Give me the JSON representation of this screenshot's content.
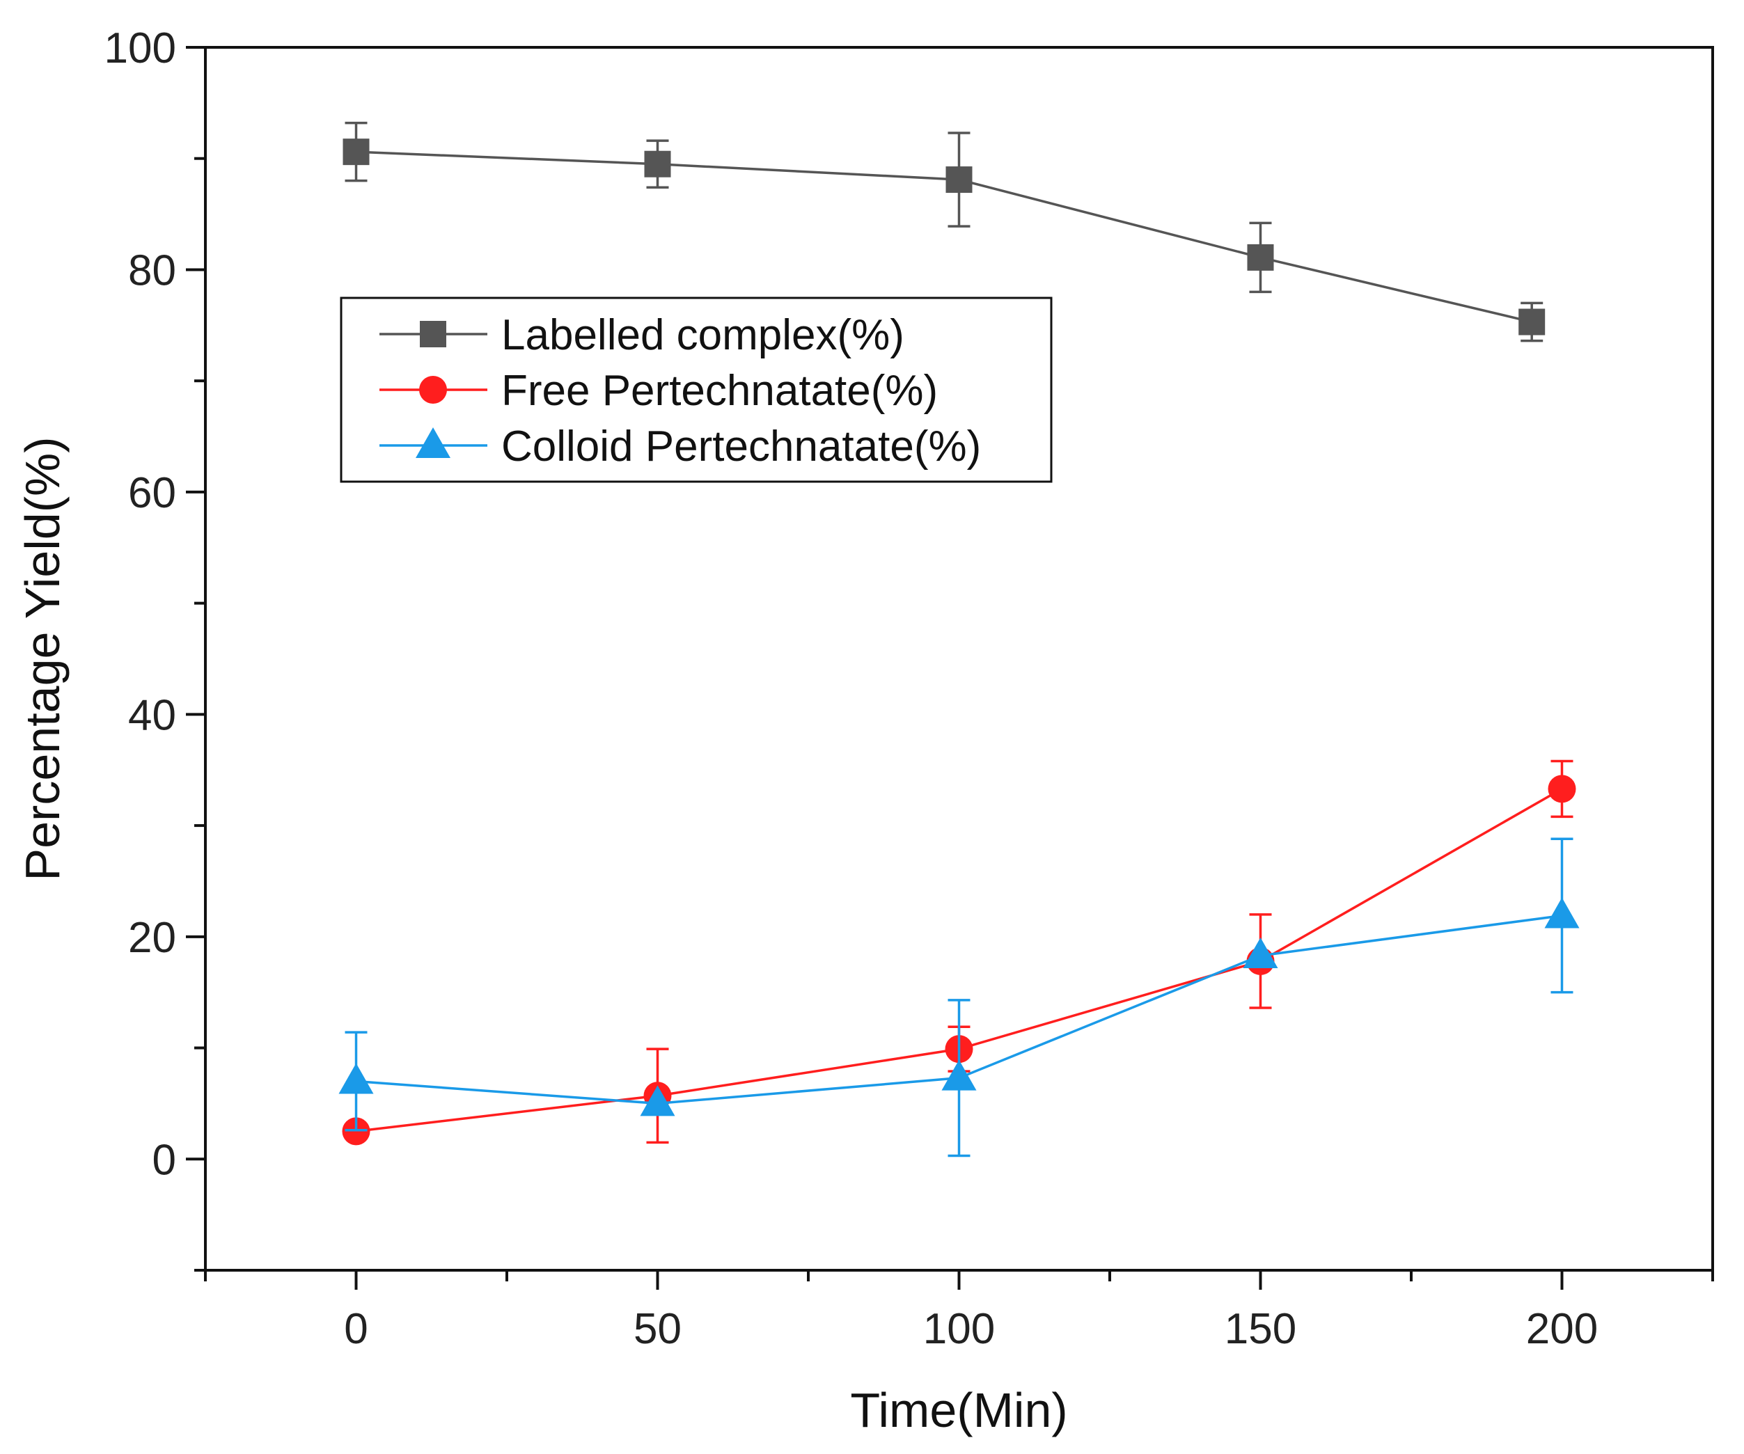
{
  "chart_data": {
    "type": "line",
    "title": "",
    "xlabel": "Time(Min)",
    "ylabel": "Percentage Yield(%)",
    "xlim": [
      -25,
      225
    ],
    "ylim": [
      -10,
      100
    ],
    "x_ticks": [
      0,
      50,
      100,
      150,
      200
    ],
    "x_tick_labels": [
      "0",
      "50",
      "100",
      "150",
      "200"
    ],
    "y_ticks": [
      0,
      20,
      40,
      60,
      80,
      100
    ],
    "y_tick_labels": [
      "0",
      "20",
      "40",
      "60",
      "80",
      "100"
    ],
    "grid": false,
    "legend_position": "upper-left",
    "series": [
      {
        "name": "Labelled complex(%)",
        "color": "#555555",
        "marker": "square",
        "x": [
          0,
          50,
          100,
          150,
          195
        ],
        "values": [
          90.6,
          89.5,
          88.1,
          81.1,
          75.3
        ],
        "error": [
          2.6,
          2.1,
          4.2,
          3.1,
          1.7
        ]
      },
      {
        "name": "Free Pertechnatate(%)",
        "color": "#ff1e1e",
        "marker": "circle",
        "x": [
          0,
          50,
          100,
          150,
          200
        ],
        "values": [
          2.5,
          5.7,
          9.9,
          17.8,
          33.3
        ],
        "error": [
          0,
          4.2,
          2.0,
          4.2,
          2.5
        ]
      },
      {
        "name": "Colloid Pertechnatate(%)",
        "color": "#1a9ae8",
        "marker": "triangle",
        "x": [
          0,
          50,
          100,
          150,
          200
        ],
        "values": [
          7.0,
          5.0,
          7.3,
          18.3,
          21.9
        ],
        "error": [
          4.4,
          0,
          7.0,
          0,
          6.9
        ]
      }
    ]
  }
}
